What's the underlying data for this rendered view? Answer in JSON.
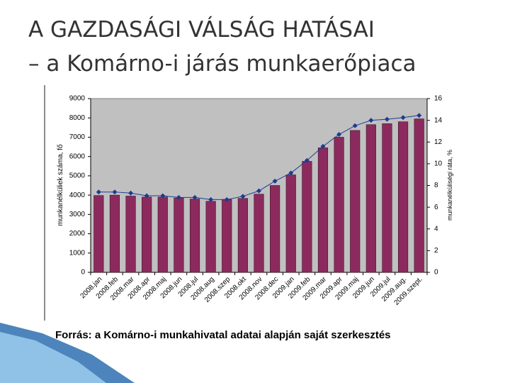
{
  "slide": {
    "title": "A GAZDASÁGI VÁLSÁG HATÁSAI",
    "subtitle": "– a Komárno-i járás munkaerőpiaca",
    "source": "Forrás: a Komárno-i munkahivatal adatai alapján saját szerkesztés"
  },
  "chart_data": {
    "type": "bar",
    "categories": [
      "2008.jan",
      "2008.feb",
      "2008.mar",
      "2008.apr",
      "2008.maj",
      "2008.jun",
      "2008.jul",
      "2008.aug",
      "2008.szep",
      "2008.okt",
      "2008.nov",
      "2008.dec",
      "2009.jan",
      "2009.feb",
      "2009.mar",
      "2009.apr",
      "2009.maj",
      "2009.jun",
      "2009.jul",
      "2009.aug.",
      "2009.szept."
    ],
    "series": [
      {
        "type": "bar",
        "color": "#8c2a5e",
        "values": [
          3980,
          4000,
          3950,
          3900,
          3900,
          3850,
          3800,
          3680,
          3780,
          3830,
          4050,
          4500,
          5050,
          5750,
          6450,
          7000,
          7350,
          7650,
          7700,
          7800,
          7950
        ]
      },
      {
        "type": "line",
        "axis": "y2",
        "color": "#1f3a93",
        "values": [
          7.4,
          7.4,
          7.3,
          7.05,
          7.05,
          6.9,
          6.9,
          6.7,
          6.7,
          7.0,
          7.5,
          8.4,
          9.15,
          10.3,
          11.6,
          12.7,
          13.5,
          14.0,
          14.1,
          14.25,
          14.45
        ]
      }
    ],
    "ylabel": "munkanélküliek száma, fő",
    "y2label": "munkanélküliségi ráta, %",
    "ylim": [
      0,
      9000
    ],
    "yticks": [
      0,
      1000,
      2000,
      3000,
      4000,
      5000,
      6000,
      7000,
      8000,
      9000
    ],
    "y2lim": [
      0,
      16
    ],
    "y2ticks": [
      0,
      2,
      4,
      6,
      8,
      10,
      12,
      14,
      16
    ],
    "plot_background": "#c0c0c0"
  }
}
